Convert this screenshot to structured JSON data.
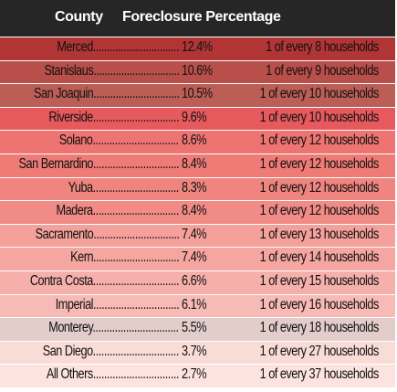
{
  "header": {
    "county": "County",
    "percentage": "Foreclosure Percentage"
  },
  "chart_data": {
    "type": "table",
    "columns": [
      "County",
      "Foreclosure Percentage",
      ""
    ],
    "rows": [
      {
        "county": "Merced",
        "value": 12.4,
        "pct": "12.4%",
        "ratio": "1 of every 8 households",
        "color": "#b23535"
      },
      {
        "county": "Stanislaus",
        "value": 10.6,
        "pct": "10.6%",
        "ratio": "1 of every 9 households",
        "color": "#b84f4a"
      },
      {
        "county": "San Joaquin",
        "value": 10.5,
        "pct": "10.5%",
        "ratio": "1 of every 10 households",
        "color": "#bb5e56"
      },
      {
        "county": "Riverside",
        "value": 9.6,
        "pct": "9.6%",
        "ratio": "1 of every 10 households",
        "color": "#e65a5e"
      },
      {
        "county": "Solano",
        "value": 8.6,
        "pct": "8.6%",
        "ratio": "1 of every 12 households",
        "color": "#ee7471"
      },
      {
        "county": "San Bernardino",
        "value": 8.4,
        "pct": "8.4%",
        "ratio": "1 of every 12 households",
        "color": "#ef7b76"
      },
      {
        "county": "Yuba",
        "value": 8.3,
        "pct": "8.3%",
        "ratio": "1 of every 12 households",
        "color": "#f08580"
      },
      {
        "county": "Madera",
        "value": 8.4,
        "pct": "8.4%",
        "ratio": "1 of every 12 households",
        "color": "#f08b86"
      },
      {
        "county": "Sacramento",
        "value": 7.4,
        "pct": "7.4%",
        "ratio": "1 of every 13 households",
        "color": "#f4a09b"
      },
      {
        "county": "Kern",
        "value": 7.4,
        "pct": "7.4%",
        "ratio": "1 of every 14 households",
        "color": "#f5a6a0"
      },
      {
        "county": "Contra Costa",
        "value": 6.6,
        "pct": "6.6%",
        "ratio": "1 of every 15 households",
        "color": "#f6b0ab"
      },
      {
        "county": "Imperial",
        "value": 6.1,
        "pct": "6.1%",
        "ratio": "1 of every 16 households",
        "color": "#f7bab4"
      },
      {
        "county": "Monterey",
        "value": 5.5,
        "pct": "5.5%",
        "ratio": "1 of every 18 households",
        "color": "#e2cdcb"
      },
      {
        "county": "San Diego",
        "value": 3.7,
        "pct": "3.7%",
        "ratio": "1 of every 27 households",
        "color": "#fadcd7"
      },
      {
        "county": "All Others",
        "value": 2.7,
        "pct": "2.7%",
        "ratio": "1 of every 37 households",
        "color": "#fce3e0"
      }
    ]
  }
}
